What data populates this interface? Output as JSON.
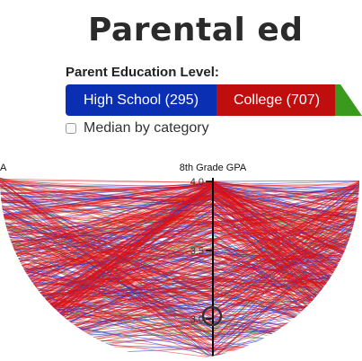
{
  "header": {
    "title": "Parental ed"
  },
  "filter": {
    "label": "Parent Education Level:",
    "segments": [
      {
        "label": "High School (295)",
        "color": "#0a2fb3"
      },
      {
        "label": "College (707)",
        "color": "#c00d0d"
      },
      {
        "label": "",
        "color": "#3a9a1e"
      }
    ]
  },
  "median": {
    "label": "Median by category",
    "checked": false
  },
  "chart": {
    "left_axis_title": "A",
    "axis_title": "8th Grade GPA",
    "ticks": [
      "4.0",
      "3.5",
      "3.0"
    ],
    "colors": {
      "high_school": "#1f2fd0",
      "college": "#e51010",
      "other": "#3da02a"
    }
  }
}
